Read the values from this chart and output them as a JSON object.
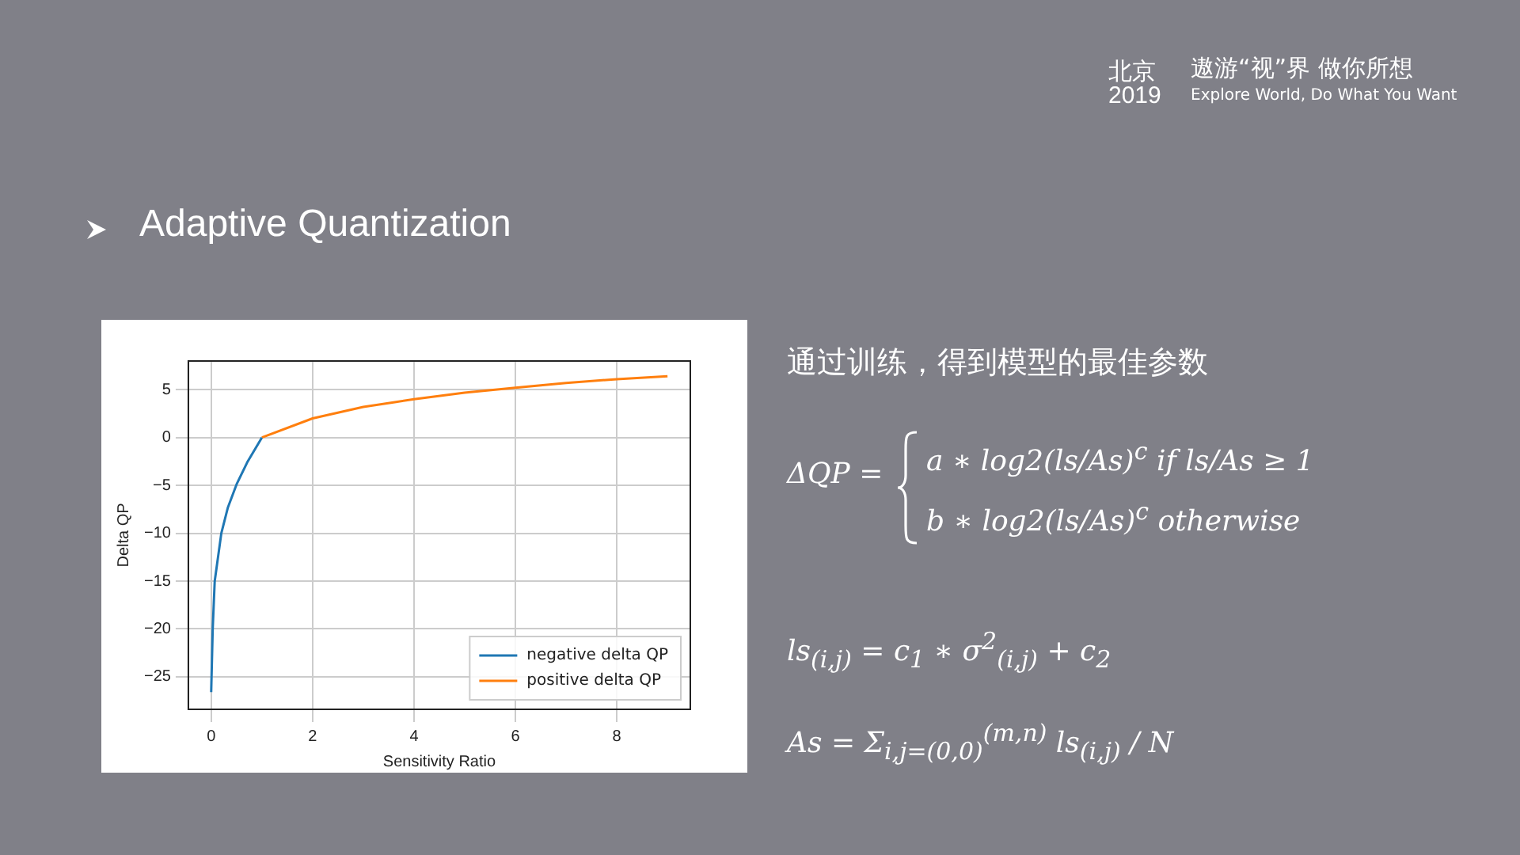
{
  "chart_data": {
    "type": "line",
    "title": "Adaptive Quantization",
    "xlabel": "Sensitivity Ratio",
    "ylabel": "Delta QP",
    "xlim": [
      -0.45,
      9.45
    ],
    "xticks": [
      0,
      2,
      4,
      6,
      8
    ],
    "ylim": [
      -28.4,
      8
    ],
    "yticks": [
      -25,
      -20,
      -15,
      -10,
      -5,
      0,
      5
    ],
    "grid": true,
    "legend": "bottom right",
    "series": [
      {
        "name": "negative delta QP",
        "color": "#1f77b4",
        "x": [
          0,
          0.03,
          0.07,
          0.2,
          0.33,
          0.5,
          0.72,
          1
        ],
        "values": [
          -26.6,
          -20,
          -15,
          -10,
          -7.3,
          -4.9,
          -2.5,
          0
        ]
      },
      {
        "name": "positive delta QP",
        "color": "#ff7f0e",
        "x": [
          1,
          2,
          3,
          4,
          5,
          6,
          7,
          8,
          9
        ],
        "values": [
          0,
          2.0,
          3.2,
          4.0,
          4.7,
          5.2,
          5.7,
          6.1,
          6.4
        ]
      }
    ],
    "annotations": [
      "北京",
      "2019",
      "遨游“视”界 做你所想",
      "Explore World, Do What You Want",
      "通过训练，得到模型的最佳参数",
      "ΔQP =",
      "a ∗ log2(ls/As)$^{c}$   if ls/As ≥ 1",
      "b ∗ log2(ls/As)$^{c}$   otherwise",
      "ls$_{(i,j)}$ = c$_{1}$ ∗ σ$^{2}$$_{(i,j)}$ + c$_{2}$",
      "As = Σ$_{i,j=(0,0)}$$^{(m,n)}$ ls$_{(i,j)}$ / N"
    ]
  }
}
